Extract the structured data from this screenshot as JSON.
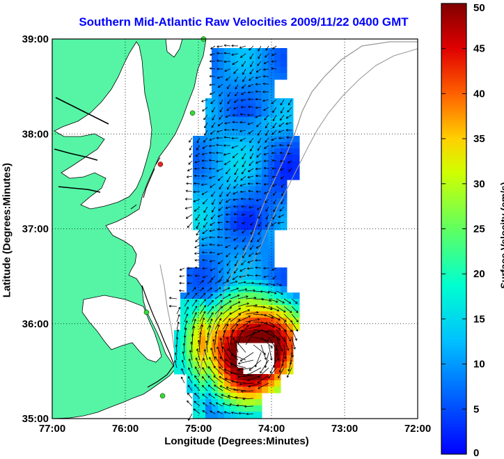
{
  "title": "Southern Mid-Atlantic Raw Velocities 2009/11/22 0400 GMT",
  "xlabel": "Longitude (Degrees:Minutes)",
  "ylabel": "Latitude (Degrees:Minutes)",
  "x_ticks": [
    {
      "value": -77,
      "label": "77:00"
    },
    {
      "value": -76,
      "label": "76:00"
    },
    {
      "value": -75,
      "label": "75:00"
    },
    {
      "value": -74,
      "label": "74:00"
    },
    {
      "value": -73,
      "label": "73:00"
    },
    {
      "value": -72,
      "label": "72:00"
    }
  ],
  "y_ticks": [
    {
      "value": 35,
      "label": "35:00"
    },
    {
      "value": 36,
      "label": "36:00"
    },
    {
      "value": 37,
      "label": "37:00"
    },
    {
      "value": 38,
      "label": "38:00"
    },
    {
      "value": 39,
      "label": "39:00"
    }
  ],
  "colorbar": {
    "label": "Surface Velocity (cm/s)",
    "min": 0,
    "max": 50,
    "ticks": [
      "0",
      "5",
      "10",
      "15",
      "20",
      "25",
      "30",
      "35",
      "40",
      "45",
      "50"
    ],
    "colormap": "jet"
  },
  "colors": {
    "land": "#55f5a5",
    "title": "#0000ff",
    "coastline": "#000000",
    "isobath": "#999999"
  },
  "stations": [
    {
      "lon": -74.93,
      "lat": 39.0,
      "color": "#33dd33"
    },
    {
      "lon": -75.08,
      "lat": 38.22,
      "color": "#33dd33"
    },
    {
      "lon": -75.52,
      "lat": 37.68,
      "color": "#ee2222"
    },
    {
      "lon": -75.71,
      "lat": 36.12,
      "color": "#33dd33"
    },
    {
      "lon": -75.49,
      "lat": 35.24,
      "color": "#33dd33"
    }
  ]
}
